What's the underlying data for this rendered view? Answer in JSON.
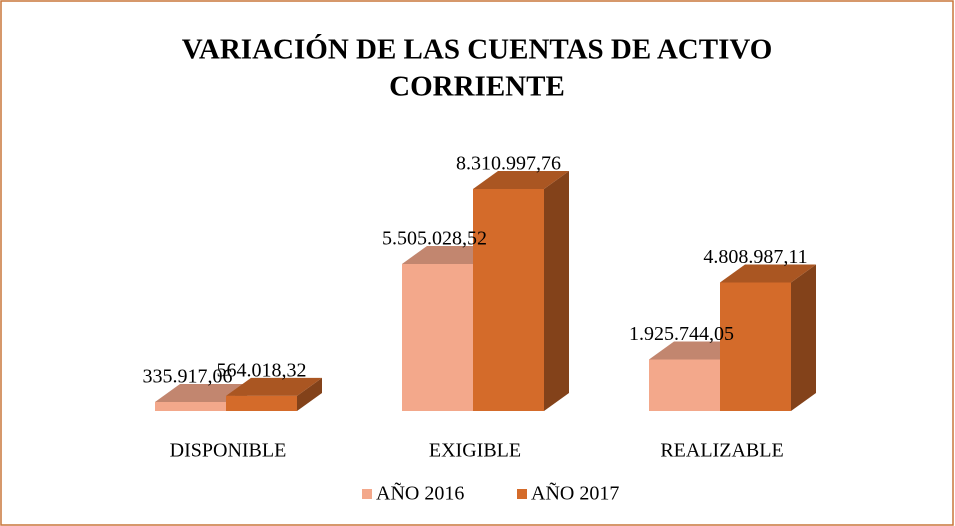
{
  "chart_data": {
    "type": "bar3d",
    "title": [
      "VARIACIÓN DE LAS CUENTAS DE ACTIVO",
      "CORRIENTE"
    ],
    "categories": [
      "DISPONIBLE",
      "EXIGIBLE",
      "REALIZABLE"
    ],
    "series": [
      {
        "name": "AÑO 2016",
        "color": "#f3a88b",
        "values": [
          335917.06,
          5505028.52,
          1925744.05
        ],
        "value_labels": [
          "335.917,06",
          "5.505.028,52",
          "1.925.744,05"
        ]
      },
      {
        "name": "AÑO 2017",
        "color": "#d46b2a",
        "values": [
          564018.32,
          8310997.76,
          4808987.11
        ],
        "value_labels": [
          "564.018,32",
          "8.310.997,76",
          "4.808.987,11"
        ]
      }
    ],
    "legend": "bottom"
  }
}
